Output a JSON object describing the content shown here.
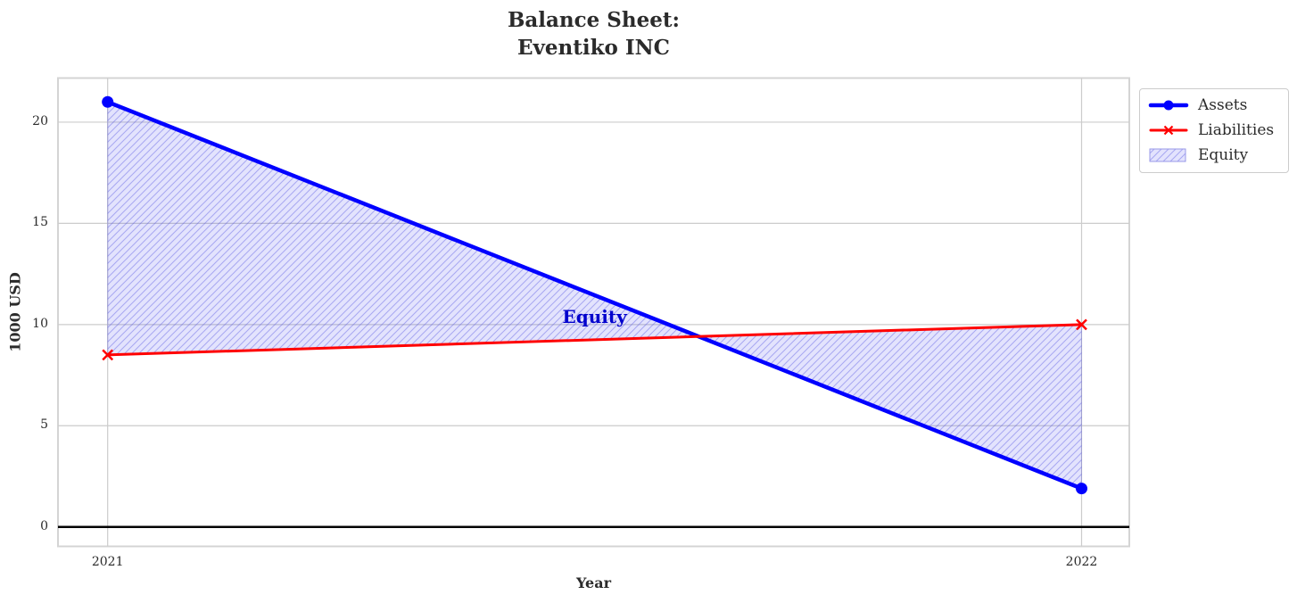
{
  "chart_data": {
    "type": "line",
    "title": "Balance Sheet:\nEventiko INC",
    "title_lines": [
      "Balance Sheet:",
      "Eventiko INC"
    ],
    "xlabel": "Year",
    "ylabel": "1000 USD",
    "x": [
      2021,
      2022
    ],
    "xtick_labels": [
      "2021",
      "2022"
    ],
    "ytick_values": [
      0,
      5,
      10,
      15,
      20
    ],
    "ytick_labels": [
      "0",
      "5",
      "10",
      "15",
      "20"
    ],
    "series": [
      {
        "name": "Assets",
        "values": [
          21,
          1.9
        ],
        "color": "#0000ff",
        "marker": "circle",
        "line_width": 4.5
      },
      {
        "name": "Liabilities",
        "values": [
          8.5,
          10
        ],
        "color": "#ff0000",
        "marker": "x",
        "line_width": 3
      }
    ],
    "fill": {
      "name": "Equity",
      "between": [
        "Assets",
        "Liabilities"
      ],
      "face_color": "#5050f5",
      "face_opacity": 0.16,
      "hatch": "//",
      "hatch_color": "#4444dd",
      "hatch_opacity": 0.38
    },
    "annotation": {
      "text": "Equity",
      "color": "#0000cd",
      "x": 2021.5,
      "y": 10.4
    },
    "legend": {
      "position": "upper right, outside plot area"
    },
    "axes": {
      "xlim": [
        2020.949,
        2022.049
      ],
      "ylim": [
        -0.96,
        22.18
      ],
      "grid": true,
      "grid_color": "#cccccc",
      "spine_color": "#d4d4d4",
      "zero_line": 0,
      "zero_line_color": "#000000",
      "text_color": "#2b2b2b"
    }
  }
}
